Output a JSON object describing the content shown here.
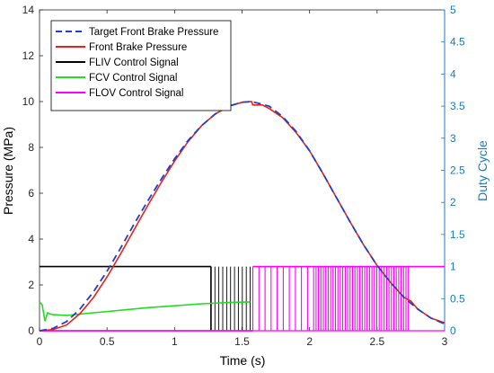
{
  "chart_data": {
    "type": "line",
    "xlabel": "Time (s)",
    "ylabel_left": "Pressure (MPa)",
    "ylabel_right": "Duty Cycle",
    "xlim": [
      0,
      3
    ],
    "ylim_left": [
      0,
      14
    ],
    "ylim_right": [
      0,
      5
    ],
    "x_ticks": [
      "0",
      "0.5",
      "1",
      "1.5",
      "2",
      "2.5",
      "3"
    ],
    "y_left_ticks": [
      "0",
      "2",
      "4",
      "6",
      "8",
      "10",
      "12",
      "14"
    ],
    "y_right_ticks": [
      "0",
      "0.5",
      "1",
      "1.5",
      "2",
      "2.5",
      "3",
      "3.5",
      "4",
      "4.5",
      "5"
    ],
    "grid": false,
    "legend_position": "top-left",
    "series": [
      {
        "name": "Target Front Brake Pressure",
        "axis": "left",
        "style": "dashed",
        "color": "#1f3fcc",
        "x": [
          0,
          0.1,
          0.2,
          0.3,
          0.4,
          0.5,
          0.6,
          0.7,
          0.8,
          0.9,
          1.0,
          1.1,
          1.2,
          1.3,
          1.4,
          1.5,
          1.57,
          1.7,
          1.8,
          1.9,
          2.0,
          2.1,
          2.2,
          2.3,
          2.4,
          2.5,
          2.6,
          2.7,
          2.8,
          2.9,
          3.0
        ],
        "values": [
          0,
          0.1,
          0.4,
          0.95,
          1.7,
          2.6,
          3.6,
          4.65,
          5.65,
          6.6,
          7.5,
          8.3,
          8.95,
          9.45,
          9.8,
          9.97,
          10.0,
          9.8,
          9.35,
          8.7,
          7.85,
          6.85,
          5.8,
          4.75,
          3.75,
          2.85,
          2.1,
          1.45,
          0.95,
          0.55,
          0.3
        ]
      },
      {
        "name": "Front Brake Pressure",
        "axis": "left",
        "style": "solid",
        "color": "#e8231a",
        "x": [
          0,
          0.1,
          0.2,
          0.3,
          0.4,
          0.5,
          0.6,
          0.7,
          0.8,
          0.9,
          1.0,
          1.1,
          1.2,
          1.3,
          1.4,
          1.5,
          1.57,
          1.58,
          1.65,
          1.7,
          1.8,
          1.9,
          2.0,
          2.1,
          2.2,
          2.3,
          2.4,
          2.5,
          2.6,
          2.7,
          2.75,
          2.8,
          2.9,
          3.0
        ],
        "values": [
          0,
          0.05,
          0.25,
          0.75,
          1.45,
          2.35,
          3.35,
          4.4,
          5.45,
          6.45,
          7.4,
          8.25,
          8.95,
          9.45,
          9.8,
          9.97,
          10.0,
          9.85,
          9.85,
          9.7,
          9.3,
          8.65,
          7.85,
          6.85,
          5.8,
          4.75,
          3.75,
          2.85,
          2.1,
          1.45,
          1.3,
          0.95,
          0.55,
          0.35
        ]
      },
      {
        "name": "FLIV Control Signal",
        "axis": "right",
        "style": "solid",
        "color": "#000000",
        "x": [
          0,
          1.27,
          3.0
        ],
        "values": [
          1,
          1,
          1
        ],
        "pwm_region": [
          1.27,
          1.56
        ],
        "pwm_range": [
          0,
          1
        ]
      },
      {
        "name": "FCV Control Signal",
        "axis": "right",
        "style": "solid",
        "color": "#22dd22",
        "x": [
          0,
          0.02,
          0.04,
          0.06,
          0.08,
          0.1,
          0.2,
          0.4,
          0.6,
          0.8,
          1.0,
          1.2,
          1.4,
          1.56
        ],
        "values": [
          0.45,
          0.4,
          0.15,
          0.28,
          0.26,
          0.25,
          0.24,
          0.28,
          0.32,
          0.36,
          0.39,
          0.42,
          0.44,
          0.45
        ]
      },
      {
        "name": "FLOV Control Signal",
        "axis": "right",
        "style": "solid",
        "color": "#ff00ff",
        "x": [
          0,
          1.58,
          3.0
        ],
        "values": [
          0,
          1,
          1
        ],
        "pwm_region": [
          1.58,
          2.74
        ],
        "pwm_range": [
          0,
          1
        ]
      }
    ]
  }
}
